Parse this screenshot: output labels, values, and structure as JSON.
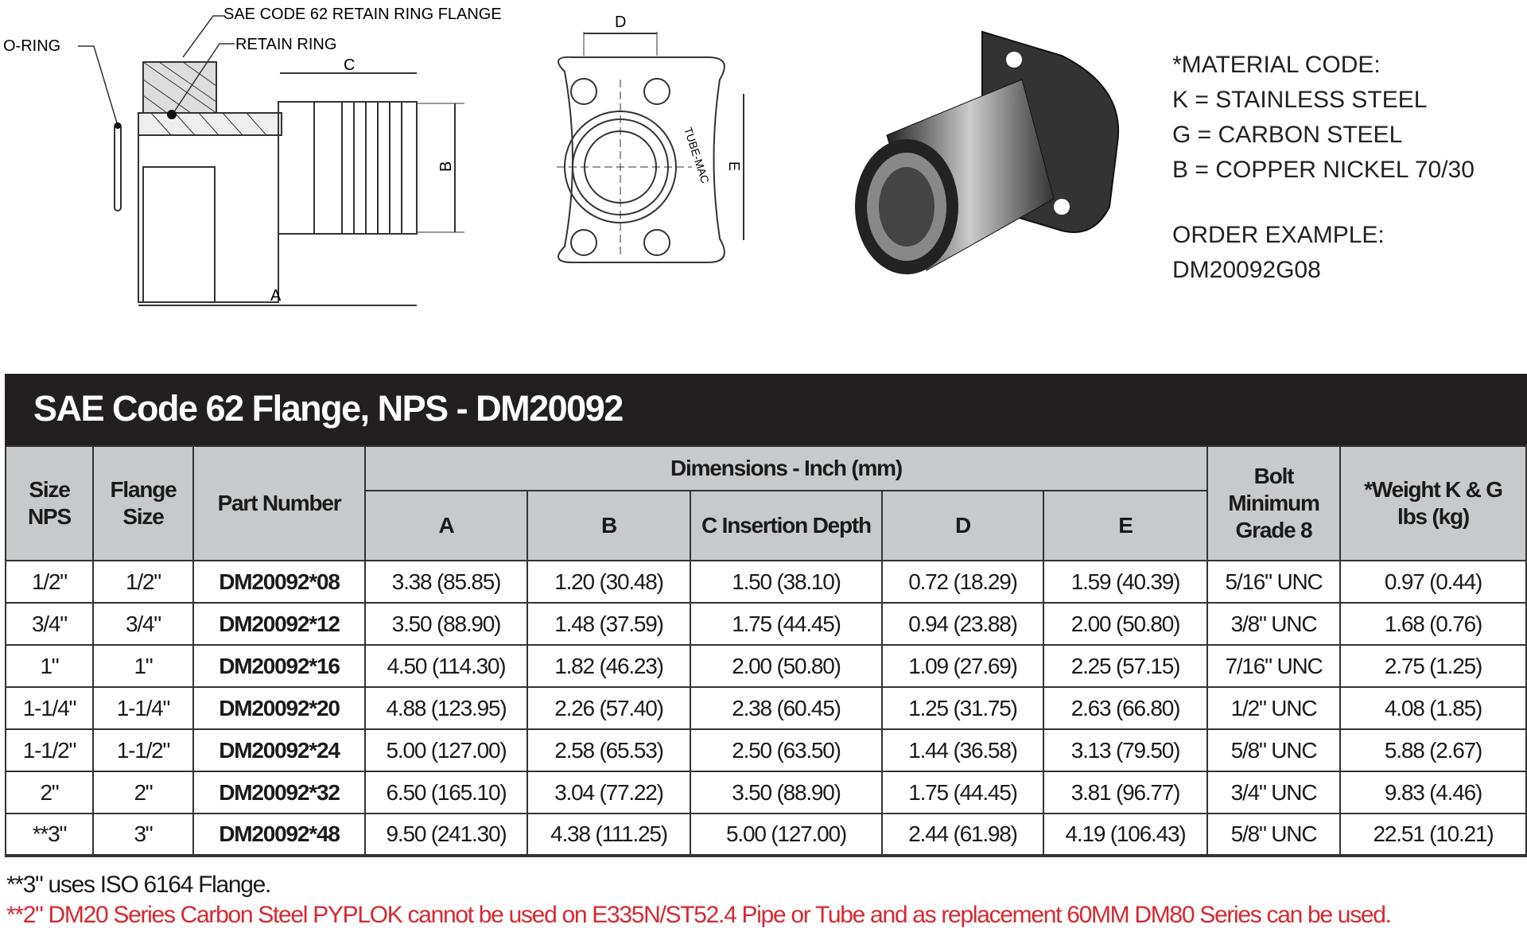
{
  "drawing": {
    "labels": {
      "flange": "SAE CODE 62 RETAIN RING FLANGE",
      "oring": "O-RING",
      "ring": "RETAIN RING",
      "a": "A",
      "b": "B",
      "c": "C",
      "d": "D",
      "e": "E",
      "brand": "TUBE-MAC"
    }
  },
  "material": {
    "heading": "*MATERIAL CODE:",
    "codes": [
      "K = STAINLESS STEEL",
      "G = CARBON STEEL",
      "B = COPPER NICKEL 70/30"
    ],
    "order_label": "ORDER EXAMPLE:",
    "order_value": "DM20092G08"
  },
  "table": {
    "title": "SAE Code 62 Flange, NPS - DM20092",
    "headers": {
      "size": "Size NPS",
      "flange": "Flange Size",
      "part": "Part Number",
      "dims": "Dimensions - Inch (mm)",
      "a": "A",
      "b": "B",
      "c": "C Insertion Depth",
      "d": "D",
      "e": "E",
      "bolt": "Bolt Minimum Grade 8",
      "weight": "*Weight K & G lbs (kg)"
    },
    "rows": [
      [
        "1/2\"",
        "1/2\"",
        "DM20092*08",
        "3.38 (85.85)",
        "1.20 (30.48)",
        "1.50 (38.10)",
        "0.72 (18.29)",
        "1.59 (40.39)",
        "5/16\" UNC",
        "0.97 (0.44)"
      ],
      [
        "3/4\"",
        "3/4\"",
        "DM20092*12",
        "3.50 (88.90)",
        "1.48 (37.59)",
        "1.75 (44.45)",
        "0.94 (23.88)",
        "2.00 (50.80)",
        "3/8\" UNC",
        "1.68 (0.76)"
      ],
      [
        "1\"",
        "1\"",
        "DM20092*16",
        "4.50 (114.30)",
        "1.82 (46.23)",
        "2.00 (50.80)",
        "1.09 (27.69)",
        "2.25 (57.15)",
        "7/16\" UNC",
        "2.75 (1.25)"
      ],
      [
        "1-1/4\"",
        "1-1/4\"",
        "DM20092*20",
        "4.88 (123.95)",
        "2.26 (57.40)",
        "2.38 (60.45)",
        "1.25 (31.75)",
        "2.63 (66.80)",
        "1/2\" UNC",
        "4.08 (1.85)"
      ],
      [
        "1-1/2\"",
        "1-1/2\"",
        "DM20092*24",
        "5.00 (127.00)",
        "2.58 (65.53)",
        "2.50 (63.50)",
        "1.44 (36.58)",
        "3.13 (79.50)",
        "5/8\" UNC",
        "5.88 (2.67)"
      ],
      [
        "2\"",
        "2\"",
        "DM20092*32",
        "6.50 (165.10)",
        "3.04 (77.22)",
        "3.50 (88.90)",
        "1.75 (44.45)",
        "3.81 (96.77)",
        "3/4\" UNC",
        "9.83 (4.46)"
      ],
      [
        "**3\"",
        "3\"",
        "DM20092*48",
        "9.50 (241.30)",
        "4.38 (111.25)",
        "5.00 (127.00)",
        "2.44 (61.98)",
        "4.19 (106.43)",
        "5/8\" UNC",
        "22.51 (10.21)"
      ]
    ]
  },
  "notes": {
    "note1": "**3\" uses ISO 6164 Flange.",
    "note2": "**2\" DM20 Series Carbon Steel PYPLOK cannot be used on E335N/ST52.4 Pipe or Tube and as replacement 60MM DM80 Series can be used.",
    "note2_color": "#d7282f"
  }
}
